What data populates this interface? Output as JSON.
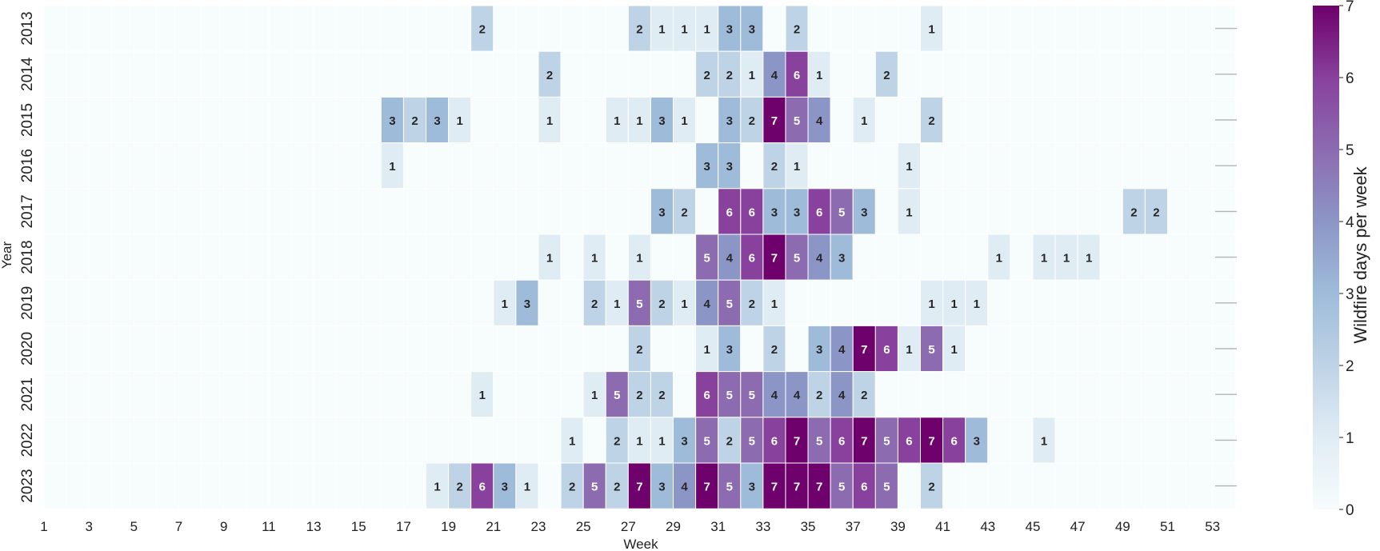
{
  "chart_data": {
    "type": "heatmap",
    "title": "",
    "xlabel": "Week",
    "ylabel": "Year",
    "colorbar_label": "Wildfire days per week",
    "colorbar_range": [
      0,
      7
    ],
    "colorbar_ticks": [
      "0",
      "1",
      "2",
      "3",
      "4",
      "5",
      "6",
      "7"
    ],
    "x_range": [
      1,
      53
    ],
    "x_tick_labels": [
      "1",
      "3",
      "5",
      "7",
      "9",
      "11",
      "13",
      "15",
      "17",
      "19",
      "21",
      "23",
      "25",
      "27",
      "29",
      "31",
      "33",
      "35",
      "37",
      "39",
      "41",
      "43",
      "45",
      "47",
      "49",
      "51",
      "53"
    ],
    "y_tick_labels": [
      "2013",
      "2014",
      "2015",
      "2016",
      "2017",
      "2018",
      "2019",
      "2020",
      "2021",
      "2022",
      "2023"
    ],
    "colormap": [
      "#f7fcfd",
      "#e0ecf4",
      "#bfd3e6",
      "#9ebcda",
      "#8c96c6",
      "#8c6bb1",
      "#88419d",
      "#6e016b"
    ],
    "annotated_nonzero": true,
    "rows": [
      {
        "year": "2013",
        "values": {
          "20": 2,
          "27": 2,
          "28": 1,
          "29": 1,
          "30": 1,
          "31": 3,
          "32": 3,
          "34": 2,
          "40": 1
        }
      },
      {
        "year": "2014",
        "values": {
          "23": 2,
          "30": 2,
          "31": 2,
          "32": 1,
          "33": 4,
          "34": 6,
          "35": 1,
          "38": 2
        }
      },
      {
        "year": "2015",
        "values": {
          "16": 3,
          "17": 2,
          "18": 3,
          "19": 1,
          "23": 1,
          "26": 1,
          "27": 1,
          "28": 3,
          "29": 1,
          "31": 3,
          "32": 2,
          "33": 7,
          "34": 5,
          "35": 4,
          "37": 1,
          "40": 2
        }
      },
      {
        "year": "2016",
        "values": {
          "16": 1,
          "30": 3,
          "31": 3,
          "33": 2,
          "34": 1,
          "39": 1
        }
      },
      {
        "year": "2017",
        "values": {
          "28": 3,
          "29": 2,
          "31": 6,
          "32": 6,
          "33": 3,
          "34": 3,
          "35": 6,
          "36": 5,
          "37": 3,
          "39": 1,
          "49": 2,
          "50": 2
        }
      },
      {
        "year": "2018",
        "values": {
          "23": 1,
          "25": 1,
          "27": 1,
          "30": 5,
          "31": 4,
          "32": 6,
          "33": 7,
          "34": 5,
          "35": 4,
          "36": 3,
          "43": 1,
          "45": 1,
          "46": 1,
          "47": 1
        }
      },
      {
        "year": "2019",
        "values": {
          "21": 1,
          "22": 3,
          "25": 2,
          "26": 1,
          "27": 5,
          "28": 2,
          "29": 1,
          "30": 4,
          "31": 5,
          "32": 2,
          "33": 1,
          "40": 1,
          "41": 1,
          "42": 1
        }
      },
      {
        "year": "2020",
        "values": {
          "27": 2,
          "30": 1,
          "31": 3,
          "33": 2,
          "35": 3,
          "36": 4,
          "37": 7,
          "38": 6,
          "39": 1,
          "40": 5,
          "41": 1
        }
      },
      {
        "year": "2021",
        "values": {
          "20": 1,
          "25": 1,
          "26": 5,
          "27": 2,
          "28": 2,
          "30": 6,
          "31": 5,
          "32": 5,
          "33": 4,
          "34": 4,
          "35": 2,
          "36": 4,
          "37": 2
        }
      },
      {
        "year": "2022",
        "values": {
          "24": 1,
          "26": 2,
          "27": 1,
          "28": 1,
          "29": 3,
          "30": 5,
          "31": 2,
          "32": 5,
          "33": 6,
          "34": 7,
          "35": 5,
          "36": 6,
          "37": 7,
          "38": 5,
          "39": 6,
          "40": 7,
          "41": 6,
          "42": 3,
          "45": 1
        }
      },
      {
        "year": "2023",
        "values": {
          "18": 1,
          "19": 2,
          "20": 6,
          "21": 3,
          "22": 1,
          "24": 2,
          "25": 5,
          "26": 2,
          "27": 7,
          "28": 3,
          "29": 4,
          "30": 7,
          "31": 5,
          "32": 3,
          "33": 7,
          "34": 7,
          "35": 7,
          "36": 5,
          "37": 6,
          "38": 5,
          "40": 2
        }
      }
    ]
  }
}
